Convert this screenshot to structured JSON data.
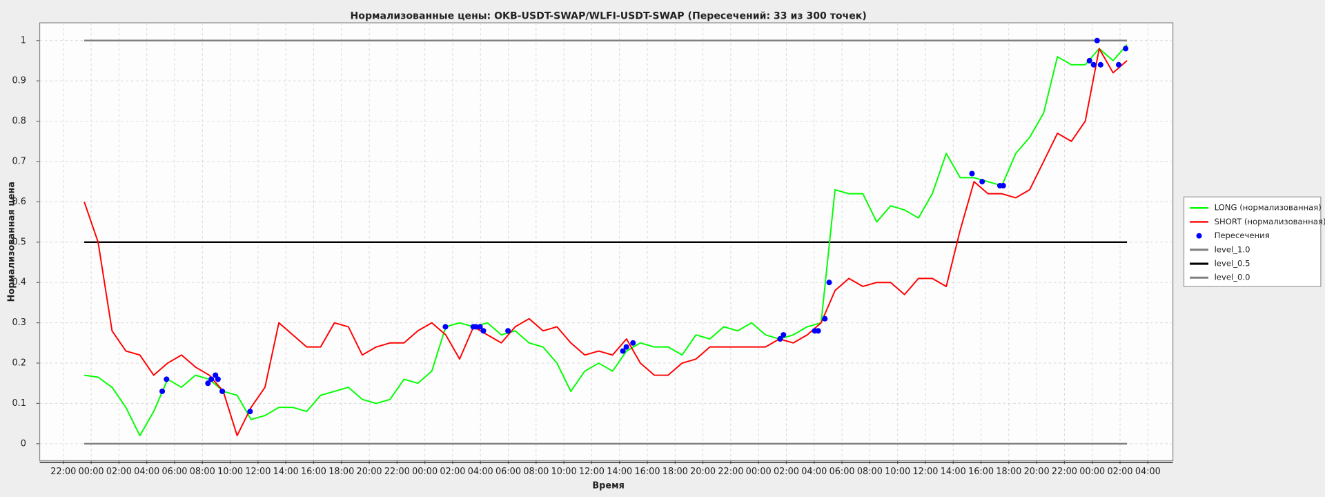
{
  "chart_data": {
    "type": "line",
    "title": "Нормализованные цены: OKB-USDT-SWAP/WLFI-USDT-SWAP (Пересечений: 33 из 300 точек)",
    "xlabel": "Время",
    "ylabel": "Нормализованная цена",
    "x": [
      1.5,
      2.5,
      3.5,
      4.5,
      5.5,
      6.5,
      7.5,
      8.5,
      9.5,
      10.5,
      11.5,
      12.5,
      13.5,
      14.5,
      15.5,
      16.5,
      17.5,
      18.5,
      19.5,
      20.5,
      21.5,
      22.5,
      23.5,
      24.5,
      25.5,
      26.5,
      27.5,
      28.5,
      29.5,
      30.5,
      31.5,
      32.5,
      33.5,
      34.5,
      35.5,
      36.5,
      37.5,
      38.5,
      39.5,
      40.5,
      41.5,
      42.5,
      43.5,
      44.5,
      45.5,
      46.5,
      47.5,
      48.5,
      49.5,
      50.5,
      51.5,
      52.5,
      53.5,
      54.5,
      55.5,
      56.5,
      57.5,
      58.5,
      59.5,
      60.5,
      61.5,
      62.5,
      63.5,
      64.5,
      65.5,
      66.5,
      67.5,
      68.5,
      69.5,
      70.5,
      71.5,
      72.5,
      73.5,
      74.5,
      75.5,
      76.5
    ],
    "series": [
      {
        "name": "LONG (нормализованная)",
        "color": "#00ff00",
        "values": [
          0.17,
          0.165,
          0.14,
          0.09,
          0.02,
          0.08,
          0.16,
          0.14,
          0.17,
          0.16,
          0.13,
          0.12,
          0.06,
          0.07,
          0.09,
          0.09,
          0.08,
          0.12,
          0.13,
          0.14,
          0.11,
          0.1,
          0.11,
          0.16,
          0.15,
          0.18,
          0.29,
          0.3,
          0.29,
          0.3,
          0.27,
          0.28,
          0.25,
          0.24,
          0.2,
          0.13,
          0.18,
          0.2,
          0.18,
          0.23,
          0.25,
          0.24,
          0.24,
          0.22,
          0.27,
          0.26,
          0.29,
          0.28,
          0.3,
          0.27,
          0.26,
          0.27,
          0.29,
          0.3,
          0.63,
          0.62,
          0.62,
          0.55,
          0.59,
          0.58,
          0.56,
          0.62,
          0.72,
          0.66,
          0.66,
          0.65,
          0.64,
          0.72,
          0.76,
          0.82,
          0.96,
          0.94,
          0.94,
          0.98,
          0.95,
          0.99
        ]
      },
      {
        "name": "SHORT (нормализованная)",
        "color": "#ff0000",
        "values": [
          0.6,
          0.5,
          0.28,
          0.23,
          0.22,
          0.17,
          0.2,
          0.22,
          0.19,
          0.17,
          0.13,
          0.02,
          0.09,
          0.14,
          0.3,
          0.27,
          0.24,
          0.24,
          0.3,
          0.29,
          0.22,
          0.24,
          0.25,
          0.25,
          0.28,
          0.3,
          0.27,
          0.21,
          0.29,
          0.27,
          0.25,
          0.29,
          0.31,
          0.28,
          0.29,
          0.25,
          0.22,
          0.23,
          0.22,
          0.26,
          0.2,
          0.17,
          0.17,
          0.2,
          0.21,
          0.24,
          0.24,
          0.24,
          0.24,
          0.24,
          0.26,
          0.25,
          0.27,
          0.3,
          0.38,
          0.41,
          0.39,
          0.4,
          0.4,
          0.37,
          0.41,
          0.41,
          0.39,
          0.53,
          0.65,
          0.62,
          0.62,
          0.61,
          0.63,
          0.7,
          0.77,
          0.75,
          0.8,
          0.98,
          0.92,
          0.95
        ]
      }
    ],
    "crossings": {
      "name": "Пересечения",
      "color": "#0000ff",
      "x": [
        7.11,
        7.42,
        10.4,
        10.64,
        10.94,
        11.12,
        11.43,
        13.43,
        27.48,
        29.48,
        29.66,
        29.97,
        30.21,
        31.98,
        40.24,
        40.49,
        40.97,
        51.55,
        51.79,
        54.04,
        54.29,
        54.77,
        55.08,
        65.35,
        66.08,
        67.36,
        67.6,
        73.8,
        74.1,
        74.35,
        74.6,
        75.9,
        76.4
      ],
      "values": [
        0.13,
        0.16,
        0.15,
        0.16,
        0.17,
        0.16,
        0.13,
        0.08,
        0.29,
        0.29,
        0.29,
        0.29,
        0.28,
        0.28,
        0.23,
        0.24,
        0.25,
        0.26,
        0.27,
        0.28,
        0.28,
        0.31,
        0.4,
        0.67,
        0.65,
        0.64,
        0.64,
        0.95,
        0.94,
        1,
        0.94,
        0.94,
        0.98
      ]
    },
    "levels": [
      {
        "name": "level_1.0",
        "color": "#808080",
        "value": 1
      },
      {
        "name": "level_0.5",
        "color": "#000000",
        "value": 0.5
      },
      {
        "name": "level_0.0",
        "color": "#808080",
        "value": 0
      }
    ],
    "xlim": [
      -1.7,
      79.8
    ],
    "ylim": [
      -0.042,
      1.044
    ],
    "yticks": [
      0,
      0.1,
      0.2,
      0.3,
      0.4,
      0.5,
      0.6,
      0.7,
      0.8,
      0.9,
      1
    ],
    "xticks": [
      {
        "value": 0,
        "label": "22:00"
      },
      {
        "value": 2,
        "label": "00:00"
      },
      {
        "value": 4,
        "label": "02:00"
      },
      {
        "value": 6,
        "label": "04:00"
      },
      {
        "value": 8,
        "label": "06:00"
      },
      {
        "value": 10,
        "label": "08:00"
      },
      {
        "value": 12,
        "label": "10:00"
      },
      {
        "value": 14,
        "label": "12:00"
      },
      {
        "value": 16,
        "label": "14:00"
      },
      {
        "value": 18,
        "label": "16:00"
      },
      {
        "value": 20,
        "label": "18:00"
      },
      {
        "value": 22,
        "label": "20:00"
      },
      {
        "value": 24,
        "label": "22:00"
      },
      {
        "value": 26,
        "label": "00:00"
      },
      {
        "value": 28,
        "label": "02:00"
      },
      {
        "value": 30,
        "label": "04:00"
      },
      {
        "value": 32,
        "label": "06:00"
      },
      {
        "value": 34,
        "label": "08:00"
      },
      {
        "value": 36,
        "label": "10:00"
      },
      {
        "value": 38,
        "label": "12:00"
      },
      {
        "value": 40,
        "label": "14:00"
      },
      {
        "value": 42,
        "label": "16:00"
      },
      {
        "value": 44,
        "label": "18:00"
      },
      {
        "value": 46,
        "label": "20:00"
      },
      {
        "value": 48,
        "label": "22:00"
      },
      {
        "value": 50,
        "label": "00:00"
      },
      {
        "value": 52,
        "label": "02:00"
      },
      {
        "value": 54,
        "label": "04:00"
      },
      {
        "value": 56,
        "label": "06:00"
      },
      {
        "value": 58,
        "label": "08:00"
      },
      {
        "value": 60,
        "label": "10:00"
      },
      {
        "value": 62,
        "label": "12:00"
      },
      {
        "value": 64,
        "label": "14:00"
      },
      {
        "value": 66,
        "label": "16:00"
      },
      {
        "value": 68,
        "label": "18:00"
      },
      {
        "value": 70,
        "label": "20:00"
      },
      {
        "value": 72,
        "label": "22:00"
      },
      {
        "value": 74,
        "label": "00:00"
      },
      {
        "value": 76,
        "label": "02:00"
      },
      {
        "value": 78,
        "label": "04:00"
      }
    ],
    "grid": true
  }
}
